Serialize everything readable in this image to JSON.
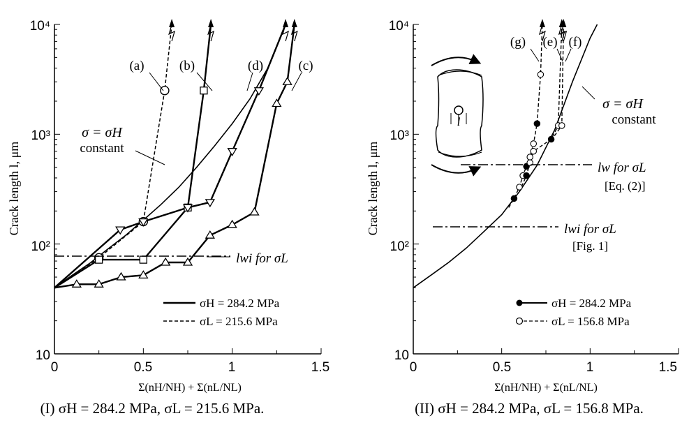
{
  "chart_data": [
    {
      "type": "line",
      "panel": "(I)",
      "caption": "(I) σH = 284.2 MPa, σL = 215.6 MPa.",
      "xlabel": "Σ(nH/NH) + Σ(nL/NL)",
      "ylabel": "Crack length l, μm",
      "xlim": [
        0,
        1.5
      ],
      "ylim": [
        10,
        10000
      ],
      "yscale": "log",
      "xticks": [
        "0",
        "0.5",
        "1",
        "1.5"
      ],
      "yticks": [
        "10",
        "10²",
        "10³",
        "10⁴"
      ],
      "grid": false,
      "legend": {
        "position": "bottom-right",
        "entries": [
          {
            "label": "σH = 284.2 MPa",
            "style": "solid-thick"
          },
          {
            "label": "σL = 215.6 MPa",
            "style": "dashed"
          }
        ]
      },
      "series": [
        {
          "name": "σ = σH constant",
          "style": "solid",
          "x": [
            0,
            0.1,
            0.2,
            0.3,
            0.4,
            0.5,
            0.6,
            0.7,
            0.8,
            0.9,
            1.0,
            1.1,
            1.2,
            1.3
          ],
          "y": [
            40,
            52,
            67,
            90,
            120,
            165,
            230,
            330,
            500,
            780,
            1250,
            2100,
            4000,
            10000
          ]
        },
        {
          "name": "(a)",
          "style": "dashed",
          "marker": "circle",
          "x": [
            0,
            0.25,
            0.5,
            0.62,
            0.66
          ],
          "y": [
            40,
            75,
            160,
            2500,
            10000
          ]
        },
        {
          "name": "(b)",
          "style": "mixed",
          "marker": "square",
          "x": [
            0,
            0.25,
            0.5,
            0.75,
            0.84,
            0.88
          ],
          "y": [
            40,
            72,
            72,
            215,
            2500,
            10000
          ]
        },
        {
          "name": "(d)",
          "style": "mixed",
          "marker": "triangle-down",
          "x": [
            0,
            0.37,
            0.5,
            0.75,
            0.875,
            1.0,
            1.15,
            1.3
          ],
          "y": [
            40,
            135,
            160,
            215,
            240,
            700,
            2500,
            10000
          ]
        },
        {
          "name": "(c)",
          "style": "mixed",
          "marker": "triangle-up",
          "x": [
            0,
            0.125,
            0.25,
            0.375,
            0.5,
            0.625,
            0.75,
            0.875,
            1.0,
            1.125,
            1.25,
            1.31,
            1.35
          ],
          "y": [
            40,
            43,
            43,
            50,
            52,
            68,
            68,
            120,
            150,
            195,
            1900,
            3000,
            10000
          ]
        }
      ],
      "annotations": [
        {
          "text": "(a)"
        },
        {
          "text": "(b)"
        },
        {
          "text": "(c)"
        },
        {
          "text": "(d)"
        },
        {
          "text": "σ = σH"
        },
        {
          "text": "constant"
        },
        {
          "text": "lwi for σL"
        }
      ]
    },
    {
      "type": "scatter",
      "panel": "(II)",
      "caption": "(II) σH = 284.2 MPa, σL = 156.8 MPa.",
      "xlabel": "Σ(nH/NH) + Σ(nL/NL)",
      "ylabel": "Crack length l, μm",
      "xlim": [
        0,
        1.5
      ],
      "ylim": [
        10,
        10000
      ],
      "yscale": "log",
      "xticks": [
        "0",
        "0.5",
        "1",
        "1.5"
      ],
      "yticks": [
        "10",
        "10²",
        "10³",
        "10⁴"
      ],
      "grid": false,
      "legend": {
        "position": "bottom-right",
        "entries": [
          {
            "label": "σH = 284.2 MPa",
            "style": "solid-filled-circle"
          },
          {
            "label": "σL = 156.8 MPa",
            "style": "dashed-open-circle"
          }
        ]
      },
      "series": [
        {
          "name": "σ = σH constant",
          "style": "solid",
          "x": [
            0,
            0.1,
            0.2,
            0.3,
            0.4,
            0.5,
            0.6,
            0.7,
            0.8,
            0.9,
            1.0,
            1.04
          ],
          "y": [
            40,
            52,
            68,
            92,
            130,
            185,
            300,
            520,
            1100,
            3000,
            7500,
            10000
          ]
        },
        {
          "name": "(g)",
          "marker": "mixed",
          "x": [
            0.54,
            0.57,
            0.6,
            0.62,
            0.64,
            0.66,
            0.68,
            0.7,
            0.72,
            0.73
          ],
          "y": [
            215,
            260,
            330,
            420,
            510,
            620,
            820,
            1250,
            3500,
            10000
          ]
        },
        {
          "name": "(e)",
          "marker": "mixed",
          "x": [
            0.6,
            0.64,
            0.66,
            0.68,
            0.78,
            0.82,
            0.84
          ],
          "y": [
            300,
            420,
            550,
            700,
            900,
            1200,
            10000
          ]
        },
        {
          "name": "(f)",
          "marker": "open-circle",
          "x": [
            0.78,
            0.84,
            0.85
          ],
          "y": [
            880,
            1200,
            10000
          ]
        }
      ],
      "annotations": [
        {
          "text": "(g)"
        },
        {
          "text": "(e)"
        },
        {
          "text": "(f)"
        },
        {
          "text": "σ = σH"
        },
        {
          "text": "constant"
        },
        {
          "text": "lw for σL"
        },
        {
          "text": "[Eq. (2)]"
        },
        {
          "text": "lwi for σL"
        },
        {
          "text": "[Fig. 1]"
        },
        {
          "text": "l"
        }
      ]
    }
  ]
}
